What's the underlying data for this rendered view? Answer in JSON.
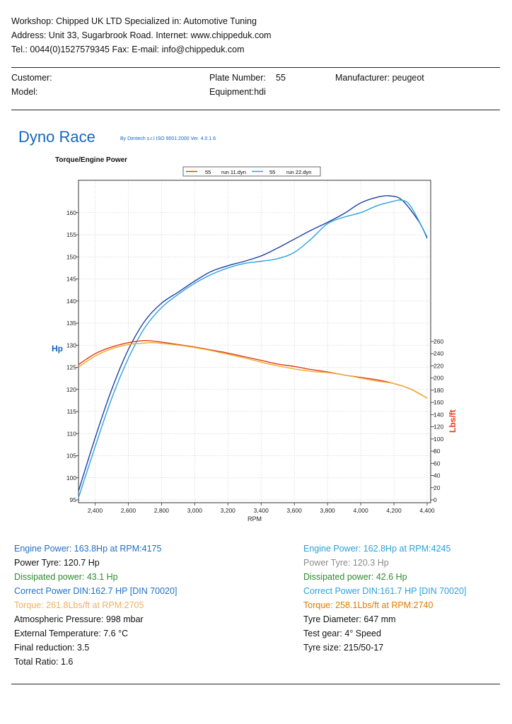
{
  "header": {
    "workshop_line": "Workshop: Chipped UK LTD   Specialized in: Automotive Tuning",
    "address_line": "Address: Unit 33, Sugarbrook Road. Internet: www.chippeduk.com",
    "contact_line": "Tel.: 0044(0)1527579345 Fax:  E-mail: info@chippeduk.com"
  },
  "vehicle": {
    "customer_label": "Customer:",
    "model_label": "Model:",
    "plate_label": "Plate Number:",
    "plate_value": "55",
    "equipment_label": "Equipment:hdi",
    "manufacturer_label": "Manufacturer: peugeot"
  },
  "report": {
    "title": "Dyno Race",
    "subtitle": "By Dimtech s.r.l  ISO 9001:2000  Ver. 4.0.1.6",
    "chart_title": "Torque/Engine Power"
  },
  "chart_data": {
    "type": "line",
    "title": "Torque/Engine Power",
    "xlabel": "RPM",
    "ylabel": "Hp",
    "y2label": "Lbs/ft",
    "xlim": [
      2300,
      4400
    ],
    "ylim": [
      95,
      164
    ],
    "y2lim": [
      0,
      265
    ],
    "x_ticks": [
      "2,400",
      "2,600",
      "2,800",
      "3,000",
      "3,200",
      "3,400",
      "3,600",
      "3,800",
      "4,000",
      "4,200",
      "4,400"
    ],
    "y_ticks": [
      95,
      100,
      105,
      110,
      115,
      120,
      125,
      130,
      135,
      140,
      145,
      150,
      155,
      160
    ],
    "y2_ticks": [
      0,
      20,
      40,
      60,
      80,
      100,
      120,
      140,
      160,
      180,
      200,
      220,
      240,
      260
    ],
    "grid": true,
    "legend": [
      {
        "name": "55",
        "file": "run 11.dyn",
        "color": "#e53918"
      },
      {
        "name": "55",
        "file": "run 22.dyn",
        "color": "#29a3dc"
      }
    ],
    "series": [
      {
        "name": "run 11.dyn power",
        "axis": "left",
        "color": "#1f3fa6",
        "x": [
          2300,
          2400,
          2500,
          2600,
          2700,
          2800,
          2900,
          3000,
          3100,
          3200,
          3300,
          3400,
          3500,
          3600,
          3700,
          3800,
          3900,
          4000,
          4100,
          4175,
          4250,
          4350,
          4400
        ],
        "y": [
          97,
          109,
          120,
          129,
          135.5,
          139.5,
          142,
          144.5,
          146.7,
          148,
          149,
          150.2,
          152,
          154,
          156,
          157.8,
          159.8,
          162.2,
          163.5,
          163.8,
          162.8,
          158,
          154.2
        ]
      },
      {
        "name": "run 22.dyn power",
        "axis": "left",
        "color": "#2aa3dc",
        "x": [
          2300,
          2400,
          2500,
          2600,
          2700,
          2800,
          2900,
          3000,
          3100,
          3200,
          3300,
          3400,
          3500,
          3600,
          3700,
          3800,
          3900,
          4000,
          4100,
          4200,
          4245,
          4300,
          4400
        ],
        "y": [
          95.5,
          107,
          118,
          127,
          134,
          138.5,
          141.5,
          144,
          146,
          147.5,
          148.5,
          149,
          149.6,
          151,
          154,
          157.5,
          159,
          160,
          161.6,
          162.6,
          162.8,
          161.5,
          154.5
        ]
      },
      {
        "name": "run 11.dyn torque",
        "axis": "right",
        "color": "#e53918",
        "x": [
          2300,
          2400,
          2500,
          2600,
          2700,
          2800,
          2900,
          3000,
          3100,
          3200,
          3300,
          3400,
          3500,
          3600,
          3700,
          3800,
          3900,
          4000,
          4100,
          4200,
          4300,
          4400
        ],
        "y": [
          222,
          240,
          251,
          258,
          261.5,
          259,
          255,
          251,
          246,
          241,
          235,
          229,
          223,
          219,
          214,
          210,
          205,
          201,
          197,
          191,
          182,
          167
        ]
      },
      {
        "name": "run 22.dyn torque",
        "axis": "right",
        "color": "#eeab2c",
        "x": [
          2300,
          2400,
          2500,
          2600,
          2700,
          2740,
          2800,
          2900,
          3000,
          3100,
          3200,
          3300,
          3400,
          3500,
          3600,
          3700,
          3800,
          3900,
          4000,
          4100,
          4200,
          4300,
          4400
        ],
        "y": [
          218,
          236,
          248,
          255,
          257.5,
          258.1,
          257,
          254,
          250,
          245,
          239,
          233,
          226,
          220,
          215,
          211,
          209,
          205,
          200,
          195,
          191,
          182,
          167
        ]
      }
    ]
  },
  "results_left": {
    "engine_power": "Engine Power: 163.8Hp at RPM:4175",
    "power_tyre": "Power Tyre: 120.7 Hp",
    "dissipated": "Dissipated power: 43.1 Hp",
    "correct_power": "Correct Power DIN:162.7 HP  [DIN 70020]",
    "torque": "Torque: 261.8Lbs/ft at RPM:2705",
    "pressure": "Atmospheric Pressure: 998 mbar",
    "temperature": "External Temperature: 7.6 °C",
    "final_reduction": "Final reduction: 3.5",
    "total_ratio": "Total Ratio: 1.6"
  },
  "results_right": {
    "engine_power": "Engine Power: 162.8Hp at RPM:4245",
    "power_tyre": "Power Tyre: 120.3 Hp",
    "dissipated": "Dissipated power: 42.6 Hp",
    "correct_power": "Correct Power DIN:161.7 HP  [DIN 70020]",
    "torque": "Torque: 258.1Lbs/ft at RPM:2740",
    "tyre_diameter": "Tyre Diameter: 647 mm",
    "test_gear": "Test gear: 4° Speed",
    "tyre_size": "Tyre size: 215/50-17"
  }
}
